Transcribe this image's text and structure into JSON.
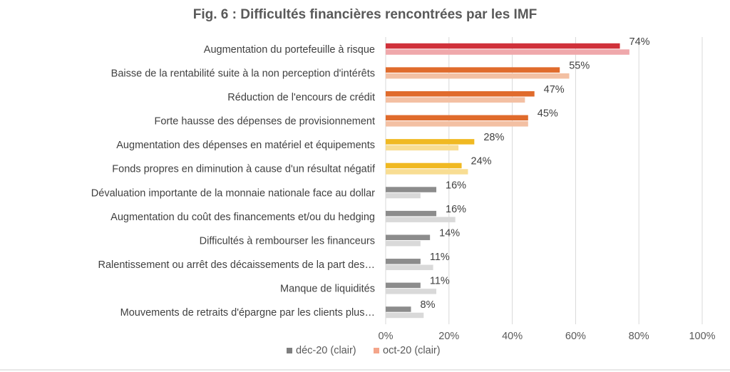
{
  "chart_data": {
    "type": "bar",
    "orientation": "horizontal",
    "title": "Fig. 6 : Difficultés financières rencontrées par les IMF",
    "categories": [
      "Augmentation du portefeuille à risque",
      "Baisse de la rentabilité suite à la non perception d'intérêts",
      "Réduction de l'encours de crédit",
      "Forte hausse des dépenses de provisionnement",
      "Augmentation des dépenses en matériel et équipements",
      "Fonds propres en diminution à cause d'un résultat négatif",
      "Dévaluation importante de la monnaie nationale face au dollar",
      "Augmentation du coût des financements et/ou du hedging",
      "Difficultés à rembourser les financeurs",
      "Ralentissement ou arrêt des décaissements de la part des…",
      "Manque de liquidités",
      "Mouvements de retraits d'épargne par les clients plus…"
    ],
    "series": [
      {
        "name": "déc-20 (clair)",
        "values": [
          74,
          55,
          47,
          45,
          28,
          24,
          16,
          16,
          14,
          11,
          11,
          8
        ],
        "data_labels": [
          "74%",
          "55%",
          "47%",
          "45%",
          "28%",
          "24%",
          "16%",
          "16%",
          "14%",
          "11%",
          "11%",
          "8%"
        ]
      },
      {
        "name": "oct-20 (clair)",
        "values": [
          77,
          58,
          44,
          45,
          23,
          26,
          11,
          22,
          11,
          15,
          16,
          12
        ]
      }
    ],
    "bar_colors": {
      "dec": [
        "#d0313a",
        "#e06b2c",
        "#e06b2c",
        "#e06b2c",
        "#f0b922",
        "#f0b922",
        "#8c8c8c",
        "#8c8c8c",
        "#8c8c8c",
        "#8c8c8c",
        "#8c8c8c",
        "#8c8c8c"
      ],
      "oct": [
        "#efa8ab",
        "#f3c0a3",
        "#f3c0a3",
        "#f3c0a3",
        "#f8dd93",
        "#f8dd93",
        "#d9d9d9",
        "#d9d9d9",
        "#d9d9d9",
        "#d9d9d9",
        "#d9d9d9",
        "#d9d9d9"
      ]
    },
    "legend_colors": [
      "#7f7f7f",
      "#f4a58a"
    ],
    "x_ticks": [
      "0%",
      "20%",
      "40%",
      "60%",
      "80%",
      "100%"
    ],
    "xlim": [
      0,
      100
    ],
    "grid": true,
    "legend_position": "bottom-left"
  }
}
